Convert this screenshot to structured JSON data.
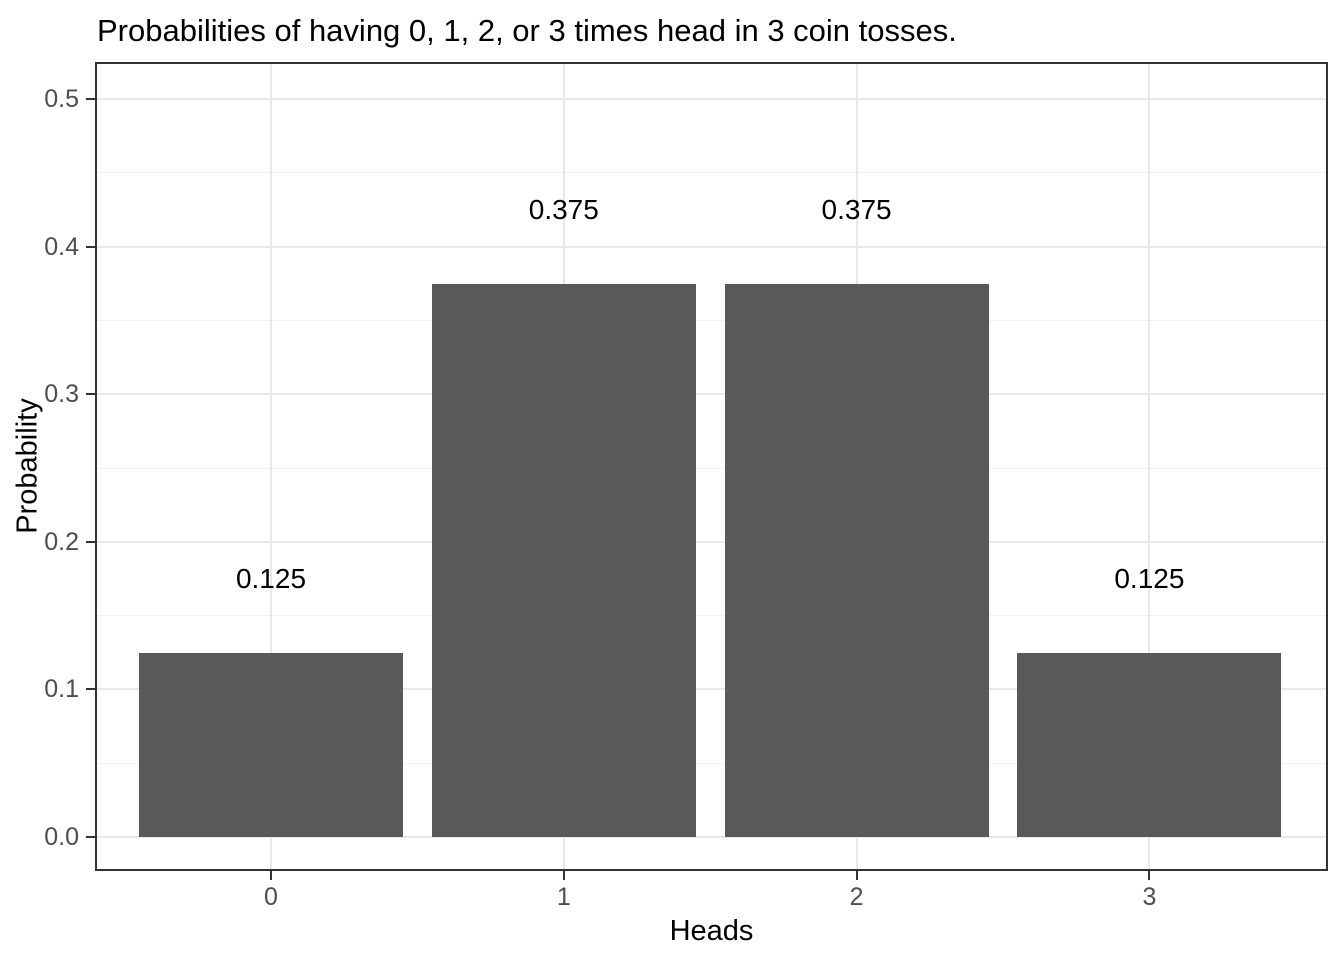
{
  "chart_data": {
    "type": "bar",
    "title": "Probabilities of having 0, 1, 2, or 3 times head in 3 coin tosses.",
    "xlabel": "Heads",
    "ylabel": "Probability",
    "categories": [
      "0",
      "1",
      "2",
      "3"
    ],
    "values": [
      0.125,
      0.375,
      0.375,
      0.125
    ],
    "bar_labels": [
      "0.125",
      "0.375",
      "0.375",
      "0.125"
    ],
    "y_ticks": [
      {
        "value": 0.0,
        "label": "0.0"
      },
      {
        "value": 0.1,
        "label": "0.1"
      },
      {
        "value": 0.2,
        "label": "0.2"
      },
      {
        "value": 0.3,
        "label": "0.3"
      },
      {
        "value": 0.4,
        "label": "0.4"
      },
      {
        "value": 0.5,
        "label": "0.5"
      }
    ],
    "y_minor_ticks": [
      0.05,
      0.15,
      0.25,
      0.35,
      0.45
    ],
    "ylim": [
      0,
      0.5
    ],
    "grid": "horizontal major+minor, vertical major at categories",
    "legend": "none",
    "label_offset": 0.05,
    "colors": {
      "bar_fill": "#595959",
      "panel_border": "#333333",
      "grid_major": "#e8e8e8",
      "grid_minor": "#f2f2f2",
      "tick_label": "#4d4d4d",
      "text": "#000000",
      "background": "#ffffff"
    }
  }
}
